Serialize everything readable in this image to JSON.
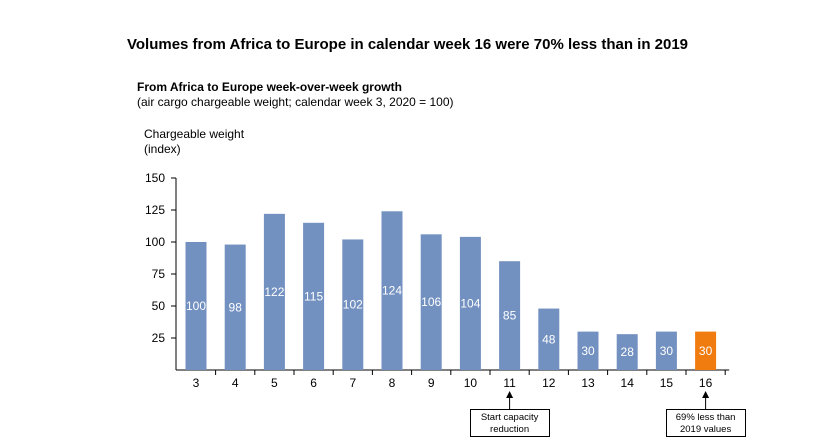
{
  "chart_data": {
    "type": "bar",
    "title": "Volumes from Africa to Europe in calendar week 16 were 70% less than in 2019",
    "subtitle": "From Africa to Europe week-over-week growth",
    "subtitle_note": "(air cargo chargeable weight; calendar week  3, 2020 = 100)",
    "ylabel_line1": "Chargeable weight",
    "ylabel_line2": "(index)",
    "xlabel": "",
    "ylim": [
      0,
      150
    ],
    "yticks": [
      25,
      50,
      75,
      100,
      125,
      150
    ],
    "grid": false,
    "categories": [
      "3",
      "4",
      "5",
      "6",
      "7",
      "8",
      "9",
      "10",
      "11",
      "12",
      "13",
      "14",
      "15",
      "16"
    ],
    "values": [
      100,
      98,
      122,
      115,
      102,
      124,
      106,
      104,
      85,
      48,
      30,
      28,
      30,
      30
    ],
    "colors": {
      "default": "#7391c0",
      "highlight": "#f07c10",
      "inside_label": "#ffffff"
    },
    "highlight_index": 13,
    "annotations": [
      {
        "category": "11",
        "line1": "Start capacity",
        "line2": "reduction"
      },
      {
        "category": "16",
        "line1": "69% less than",
        "line2": "2019 values"
      }
    ]
  }
}
